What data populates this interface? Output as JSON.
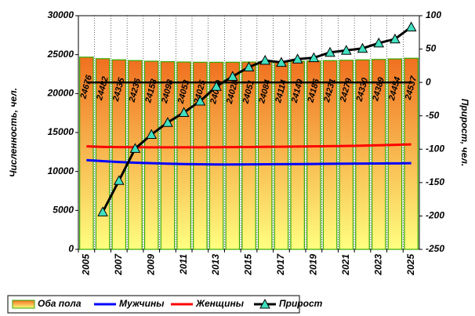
{
  "chart_data": {
    "type": "bar",
    "y_label": "Численность, чел.",
    "y2_label": "Прирост, чел.",
    "categories": [
      "2005",
      null,
      "2007",
      null,
      "2009",
      null,
      "2011",
      null,
      "2013",
      null,
      "2015",
      null,
      "2017",
      null,
      "2019",
      null,
      "2021",
      null,
      "2023",
      null,
      "2025"
    ],
    "ylim": [
      0,
      30000
    ],
    "yticks": [
      0,
      5000,
      10000,
      15000,
      20000,
      25000,
      30000
    ],
    "y2lim": [
      -250,
      100
    ],
    "y2ticks": [
      -250,
      -200,
      -150,
      -100,
      -50,
      0,
      50,
      100
    ],
    "grid": true,
    "legend": "bottom",
    "series": [
      {
        "name": "Оба пола",
        "type": "bar",
        "color": "#f07020",
        "values": [
          24676,
          24482,
          24335,
          24236,
          24158,
          24098,
          24053,
          24025,
          24019,
          24028,
          24051,
          24084,
          24114,
          24149,
          24186,
          24231,
          24279,
          24330,
          24389,
          24454,
          24537
        ]
      },
      {
        "name": "Мужчины",
        "type": "line",
        "color": "#0000ff",
        "values": [
          11450,
          11330,
          11210,
          11120,
          11060,
          11000,
          10950,
          10920,
          10900,
          10900,
          10910,
          10920,
          10930,
          10950,
          10960,
          10980,
          11000,
          11010,
          11020,
          11030,
          11060
        ]
      },
      {
        "name": "Женщины",
        "type": "line",
        "color": "#ff0000",
        "values": [
          13220,
          13150,
          13120,
          13110,
          13100,
          13100,
          13100,
          13100,
          13110,
          13120,
          13140,
          13160,
          13180,
          13200,
          13220,
          13250,
          13280,
          13320,
          13370,
          13420,
          13480
        ]
      },
      {
        "name": "Прирост",
        "type": "line",
        "axis": "y2",
        "color": "#000000",
        "marker": "#40e0c0",
        "values": [
          null,
          -194,
          -147,
          -99,
          -78,
          -60,
          -45,
          -28,
          -6,
          9,
          23,
          33,
          30,
          35,
          37,
          45,
          48,
          51,
          59,
          65,
          83
        ]
      }
    ]
  }
}
